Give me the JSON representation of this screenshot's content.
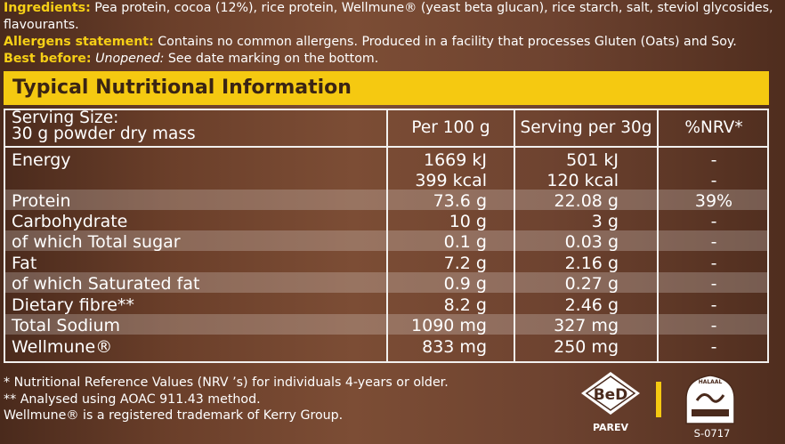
{
  "top": {
    "ingredients_label": "Ingredients:",
    "ingredients_text": " Pea protein, cocoa (12%), rice protein, Wellmune® (yeast beta glucan), rice starch, salt, steviol glycosides, flavourants.",
    "allergens_label": "Allergens statement:",
    "allergens_text": " Contains no common allergens. Produced in a facility that processes Gluten (Oats) and Soy.",
    "best_before_label": "Best before:",
    "best_before_italic": " Unopened:",
    "best_before_text": " See date marking on the bottom."
  },
  "banner": {
    "title": "Typical Nutritional Information"
  },
  "table": {
    "headers": {
      "serving_line1": "Serving Size:",
      "serving_line2": "30 g powder dry mass",
      "per100": "Per 100 g",
      "perserving": "Serving per 30g",
      "nrv": "%NRV*"
    },
    "rows": [
      {
        "name": "Energy",
        "per100": "1669 kJ",
        "serving": "501 kJ",
        "nrv": "-"
      },
      {
        "name": "",
        "per100": "399 kcal",
        "serving": "120 kcal",
        "nrv": "-"
      },
      {
        "name": "Protein",
        "per100": "73.6 g",
        "serving": "22.08 g",
        "nrv": "39%"
      },
      {
        "name": "Carbohydrate",
        "per100": "10 g",
        "serving": "3 g",
        "nrv": "-"
      },
      {
        "name": "of which Total sugar",
        "per100": "0.1 g",
        "serving": "0.03 g",
        "nrv": "-"
      },
      {
        "name": "Fat",
        "per100": "7.2 g",
        "serving": "2.16 g",
        "nrv": "-"
      },
      {
        "name": "of which Saturated fat",
        "per100": "0.9 g",
        "serving": "0.27 g",
        "nrv": "-"
      },
      {
        "name": "Dietary fibre**",
        "per100": "8.2 g",
        "serving": "2.46 g",
        "nrv": "-"
      },
      {
        "name": "Total Sodium",
        "per100": "1090 mg",
        "serving": "327 mg",
        "nrv": "-"
      },
      {
        "name": "Wellmune®",
        "per100": "833 mg",
        "serving": "250 mg",
        "nrv": "-"
      }
    ]
  },
  "footnotes": {
    "line1": "* Nutritional Reference Values (NRV ’s) for individuals 4-years or older.",
    "line2": "** Analysed using AOAC 911.43 method.",
    "line3": "Wellmune® is a registered trademark of Kerry Group."
  },
  "badges": {
    "bud_letters": "BeD",
    "parev_label": "PAREV",
    "halaal_top": "HALAAL",
    "halaal_code": "S-0717"
  },
  "colors": {
    "accent_yellow": "#f5c911",
    "banner_text": "#3a2414",
    "background": "#6b3f2a"
  }
}
